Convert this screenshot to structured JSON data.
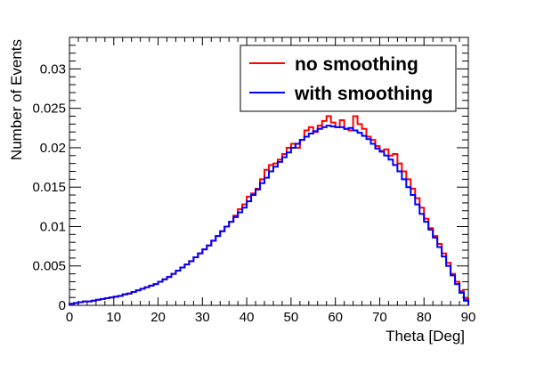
{
  "chart_data": {
    "type": "line",
    "style": "step-histogram",
    "title": "",
    "xlabel": "Theta [Deg]",
    "ylabel": "Number of Events",
    "xlim": [
      0,
      90
    ],
    "ylim": [
      0,
      0.034
    ],
    "x_ticks": [
      0,
      10,
      20,
      30,
      40,
      50,
      60,
      70,
      80,
      90
    ],
    "x_tick_labels": [
      "0",
      "10",
      "20",
      "30",
      "40",
      "50",
      "60",
      "70",
      "80",
      "90"
    ],
    "y_ticks": [
      0,
      0.005,
      0.01,
      0.015,
      0.02,
      0.025,
      0.03
    ],
    "y_tick_labels": [
      "0",
      "0.005",
      "0.01",
      "0.015",
      "0.02",
      "0.025",
      "0.03"
    ],
    "grid": false,
    "legend_position": "top-right",
    "bin_width": 1.0,
    "series": [
      {
        "name": "no smoothing",
        "color": "#ff0000",
        "values": [
          0.0002,
          0.0003,
          0.0004,
          0.0005,
          0.0005,
          0.0006,
          0.0007,
          0.0008,
          0.0009,
          0.001,
          0.0011,
          0.0012,
          0.0014,
          0.0015,
          0.0017,
          0.0019,
          0.0021,
          0.0023,
          0.0025,
          0.0027,
          0.003,
          0.0033,
          0.0036,
          0.004,
          0.0044,
          0.0048,
          0.0052,
          0.0056,
          0.0061,
          0.0066,
          0.0071,
          0.0076,
          0.0082,
          0.0088,
          0.0094,
          0.01,
          0.0106,
          0.0114,
          0.0122,
          0.0128,
          0.0138,
          0.0142,
          0.0148,
          0.016,
          0.0172,
          0.0178,
          0.018,
          0.0185,
          0.0192,
          0.02,
          0.0205,
          0.02,
          0.021,
          0.0222,
          0.0226,
          0.022,
          0.0228,
          0.0234,
          0.024,
          0.0232,
          0.0226,
          0.0235,
          0.0224,
          0.0222,
          0.024,
          0.023,
          0.0224,
          0.0214,
          0.021,
          0.0202,
          0.0196,
          0.0198,
          0.019,
          0.0192,
          0.018,
          0.017,
          0.016,
          0.0148,
          0.0136,
          0.0124,
          0.011,
          0.0098,
          0.0088,
          0.0078,
          0.0066,
          0.0054,
          0.004,
          0.003,
          0.0018,
          0.0008
        ]
      },
      {
        "name": "with smoothing",
        "color": "#0000ff",
        "values": [
          0.0002,
          0.0003,
          0.0004,
          0.0005,
          0.0005,
          0.0006,
          0.0007,
          0.0008,
          0.0009,
          0.001,
          0.0011,
          0.0012,
          0.0014,
          0.0015,
          0.0017,
          0.0019,
          0.0021,
          0.0023,
          0.0025,
          0.0027,
          0.003,
          0.0033,
          0.0036,
          0.004,
          0.0044,
          0.0048,
          0.0052,
          0.0056,
          0.0061,
          0.0066,
          0.0071,
          0.0076,
          0.0082,
          0.0088,
          0.0094,
          0.01,
          0.0106,
          0.0112,
          0.0118,
          0.0124,
          0.0132,
          0.014,
          0.0147,
          0.0155,
          0.0162,
          0.017,
          0.0176,
          0.0182,
          0.0188,
          0.0194,
          0.02,
          0.0205,
          0.021,
          0.0214,
          0.0218,
          0.0221,
          0.0224,
          0.0226,
          0.0228,
          0.0227,
          0.0226,
          0.0226,
          0.0224,
          0.0225,
          0.0222,
          0.0219,
          0.0215,
          0.0211,
          0.0205,
          0.0199,
          0.0195,
          0.019,
          0.0185,
          0.0178,
          0.017,
          0.016,
          0.015,
          0.014,
          0.0128,
          0.0116,
          0.0106,
          0.0096,
          0.0086,
          0.0074,
          0.0062,
          0.005,
          0.0038,
          0.0027,
          0.0016,
          0.0006
        ]
      }
    ]
  }
}
